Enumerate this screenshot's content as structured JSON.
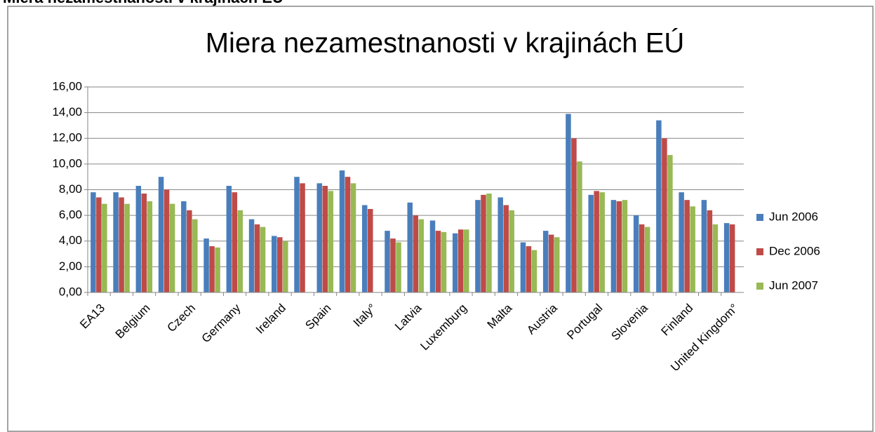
{
  "heading": "Miera nezamestnanosti v krajinách EÚ",
  "chart_data": {
    "type": "bar",
    "title": "Miera nezamestnanosti v krajinách EÚ",
    "categories": [
      "EA13",
      null,
      "Belgium",
      null,
      "Czech",
      null,
      "Germany",
      null,
      "Ireland",
      null,
      "Spain",
      null,
      "Italy°",
      null,
      "Latvia",
      null,
      "Luxemburg",
      null,
      "Malta",
      null,
      "Austria",
      null,
      "Portugal",
      null,
      "Slovenia",
      null,
      "Finland",
      null,
      "United Kingdom°"
    ],
    "series": [
      {
        "name": "Jun 2006",
        "color": "#4a7ebb",
        "values": [
          7.8,
          7.8,
          8.3,
          9.0,
          7.1,
          4.2,
          8.3,
          5.7,
          4.4,
          9.0,
          8.5,
          9.5,
          6.8,
          4.8,
          7.0,
          5.6,
          4.6,
          7.2,
          7.4,
          3.9,
          4.8,
          13.9,
          7.6,
          7.2,
          6.0,
          13.4,
          7.8,
          7.2,
          5.4
        ]
      },
      {
        "name": "Dec 2006",
        "color": "#be4b48",
        "values": [
          7.4,
          7.4,
          7.7,
          8.0,
          6.4,
          3.6,
          7.8,
          5.3,
          4.3,
          8.5,
          8.3,
          9.0,
          6.5,
          4.2,
          6.0,
          4.8,
          4.9,
          7.6,
          6.8,
          3.6,
          4.5,
          12.0,
          7.9,
          7.1,
          5.3,
          12.0,
          7.2,
          6.4,
          5.3
        ]
      },
      {
        "name": "Jun 2007",
        "color": "#98b954",
        "values": [
          6.9,
          6.9,
          7.1,
          6.9,
          5.7,
          3.5,
          6.4,
          5.1,
          4.0,
          null,
          7.9,
          8.5,
          null,
          3.9,
          5.7,
          4.7,
          4.9,
          7.7,
          6.4,
          3.3,
          4.3,
          10.2,
          7.8,
          7.2,
          5.1,
          10.7,
          6.7,
          5.3,
          null
        ]
      }
    ],
    "ylim": [
      0,
      16
    ],
    "yticks": [
      {
        "value": 0,
        "label": "0,00"
      },
      {
        "value": 2,
        "label": "2,00"
      },
      {
        "value": 4,
        "label": "4,00"
      },
      {
        "value": 6,
        "label": "6,00"
      },
      {
        "value": 8,
        "label": "8,00"
      },
      {
        "value": 10,
        "label": "10,00"
      },
      {
        "value": 12,
        "label": "12,00"
      },
      {
        "value": 14,
        "label": "14,00"
      },
      {
        "value": 16,
        "label": "16,00"
      }
    ],
    "grid": true,
    "legend": "right"
  }
}
